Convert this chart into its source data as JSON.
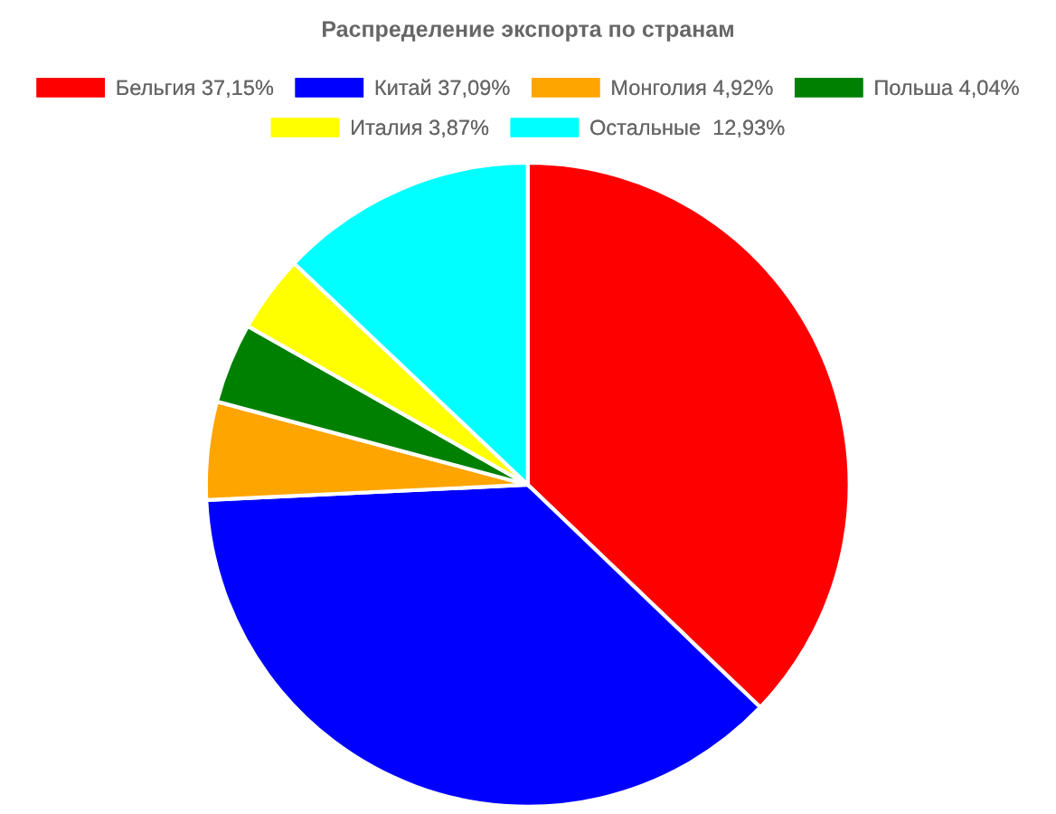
{
  "chart_data": {
    "type": "pie",
    "title": "Распределение экспорта по странам",
    "categories": [
      "Бельгия 37,15%",
      "Китай 37,09%",
      "Монголия 4,92%",
      "Польша 4,04%",
      "Италия 3,87%",
      "Остальные  12,93%"
    ],
    "values": [
      37.15,
      37.09,
      4.92,
      4.04,
      3.87,
      12.93
    ],
    "colors": [
      "#ff0000",
      "#0000ff",
      "#ffa500",
      "#008000",
      "#ffff00",
      "#00ffff"
    ],
    "legend": "top"
  }
}
